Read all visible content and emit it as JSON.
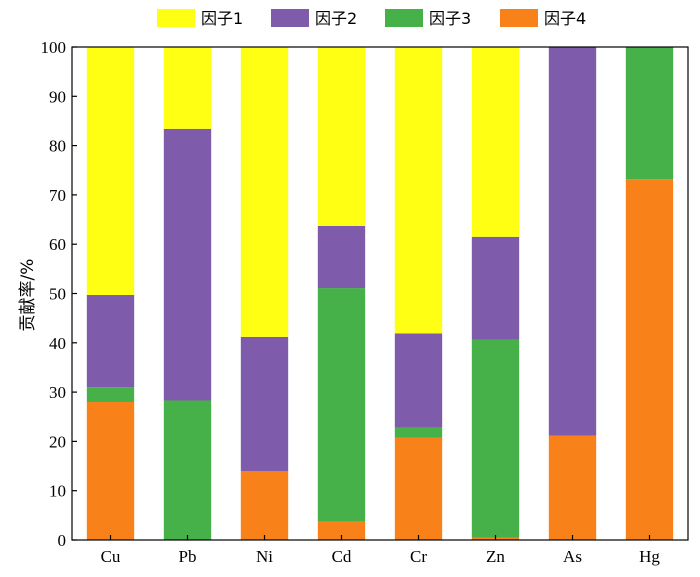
{
  "chart_data": {
    "type": "bar",
    "stacked": true,
    "categories": [
      "Cu",
      "Pb",
      "Ni",
      "Cd",
      "Cr",
      "Zn",
      "As",
      "Hg"
    ],
    "series": [
      {
        "name": "因子4",
        "color": "#F8811A",
        "values": [
          28.0,
          0.0,
          14.0,
          3.7,
          20.8,
          0.5,
          21.2,
          73.2
        ]
      },
      {
        "name": "因子3",
        "color": "#46B049",
        "values": [
          3.0,
          28.3,
          0.0,
          47.4,
          2.0,
          40.1,
          0.0,
          26.8
        ]
      },
      {
        "name": "因子2",
        "color": "#7F5CAB",
        "values": [
          18.7,
          55.1,
          27.2,
          12.6,
          19.1,
          20.9,
          78.8,
          0.0
        ]
      },
      {
        "name": "因子1",
        "color": "#FFFF14",
        "values": [
          50.3,
          16.6,
          58.8,
          36.3,
          58.1,
          38.5,
          0.0,
          0.0
        ]
      }
    ],
    "legend_order": [
      "因子1",
      "因子2",
      "因子3",
      "因子4"
    ],
    "legend_position": "top",
    "ylabel": "贡献率/%",
    "xlabel": "",
    "ylim": [
      0,
      100
    ],
    "yticks": [
      "0",
      "10",
      "20",
      "30",
      "40",
      "50",
      "60",
      "70",
      "80",
      "90",
      "100"
    ],
    "grid": false
  }
}
